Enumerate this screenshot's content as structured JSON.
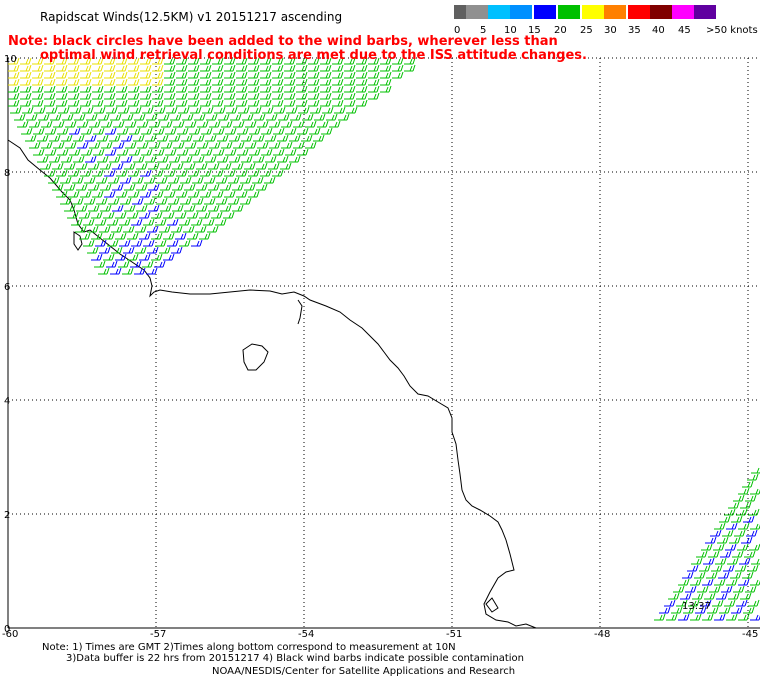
{
  "title": "Rapidscat Winds(12.5KM) v1 20151217 ascending",
  "note": {
    "line1": "Note: black circles have been added to the wind barbs, wherever less than",
    "line2": "optimal wind retrieval conditions are met due to the ISS attitude changes."
  },
  "legend": {
    "unit": "knots",
    "labels": [
      "0",
      "5",
      "10",
      "15",
      "20",
      "25",
      "30",
      "35",
      "40",
      "45",
      ">50 knots"
    ],
    "colors": [
      "#606060",
      "#909090",
      "#00c0ff",
      "#0090ff",
      "#0000ff",
      "#00c000",
      "#ffff00",
      "#ff8000",
      "#ff0000",
      "#800000",
      "#ff00ff",
      "#6000a0"
    ]
  },
  "axes": {
    "lat_labels": [
      "10",
      "8",
      "6",
      "4",
      "2",
      "0"
    ],
    "lon_labels": [
      "-60",
      "-57",
      "-54",
      "-51",
      "-48",
      "-45"
    ]
  },
  "time_label": "13:37",
  "footer": {
    "line1": "Note: 1) Times are GMT 2)Times along bottom correspond to measurement at 10N",
    "line2": "3)Data buffer is 22 hrs from 20151217 4) Black wind barbs indicate possible contamination",
    "line3": "NOAA/NESDIS/Center for Satellite Applications and Research"
  }
}
